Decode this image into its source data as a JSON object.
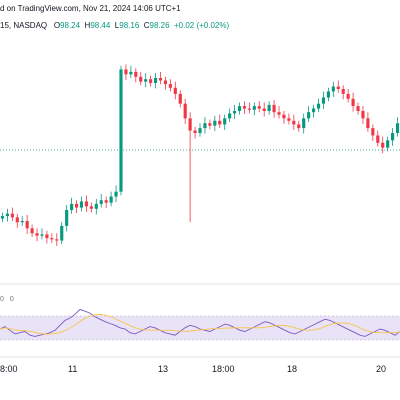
{
  "header": {
    "published_text": "d on TradingView.com, Nov 21, 2024 14:06 UTC+1",
    "symbol_frag": "15, NASDAQ",
    "open_k": "O",
    "open_v": "98.24",
    "high_k": "H",
    "high_v": "98.44",
    "low_k": "L",
    "low_v": "98.16",
    "close_k": "C",
    "close_v": "98.26",
    "change": "+0.02 (+0.02%)"
  },
  "indicator_label": "0 0",
  "x_ticks": [
    "8:00",
    "11",
    "13",
    "18:00",
    "18",
    "20"
  ],
  "colors": {
    "up": "#089981",
    "down": "#f23645",
    "rsi_line": "#7e57c2",
    "rsi_band": "#e9e3f7",
    "ma_line": "#f7c548",
    "guide": "#089981"
  },
  "chart_data": {
    "type": "candlestick",
    "price_closes": [
      97.5,
      97.52,
      97.49,
      97.45,
      97.46,
      97.4,
      97.36,
      97.34,
      97.35,
      97.32,
      97.31,
      97.3,
      97.42,
      97.55,
      97.6,
      97.57,
      97.62,
      97.58,
      97.56,
      97.6,
      97.63,
      97.61,
      97.66,
      97.7,
      98.7,
      98.66,
      98.68,
      98.64,
      98.6,
      98.62,
      98.59,
      98.63,
      98.61,
      98.58,
      98.55,
      98.5,
      98.42,
      98.3,
      98.2,
      98.18,
      98.22,
      98.26,
      98.24,
      98.28,
      98.25,
      98.3,
      98.34,
      98.36,
      98.4,
      98.38,
      98.37,
      98.4,
      98.38,
      98.36,
      98.41,
      98.35,
      98.33,
      98.3,
      98.28,
      98.25,
      98.22,
      98.3,
      98.35,
      98.38,
      98.42,
      98.47,
      98.52,
      98.56,
      98.54,
      98.5,
      98.46,
      98.4,
      98.36,
      98.3,
      98.22,
      98.16,
      98.1,
      98.06,
      98.12,
      98.18,
      98.26
    ],
    "rsi": [
      46,
      50,
      44,
      38,
      40,
      42,
      36,
      34,
      36,
      38,
      40,
      44,
      52,
      60,
      64,
      70,
      78,
      75,
      72,
      66,
      62,
      58,
      55,
      52,
      48,
      46,
      40,
      38,
      42,
      46,
      50,
      48,
      44,
      40,
      38,
      36,
      42,
      48,
      52,
      50,
      46,
      44,
      42,
      46,
      50,
      54,
      52,
      48,
      44,
      42,
      46,
      50,
      54,
      58,
      56,
      52,
      48,
      44,
      40,
      38,
      42,
      46,
      50,
      54,
      58,
      62,
      60,
      56,
      52,
      48,
      44,
      40,
      36,
      34,
      38,
      42,
      46,
      44,
      40,
      36,
      42
    ]
  }
}
